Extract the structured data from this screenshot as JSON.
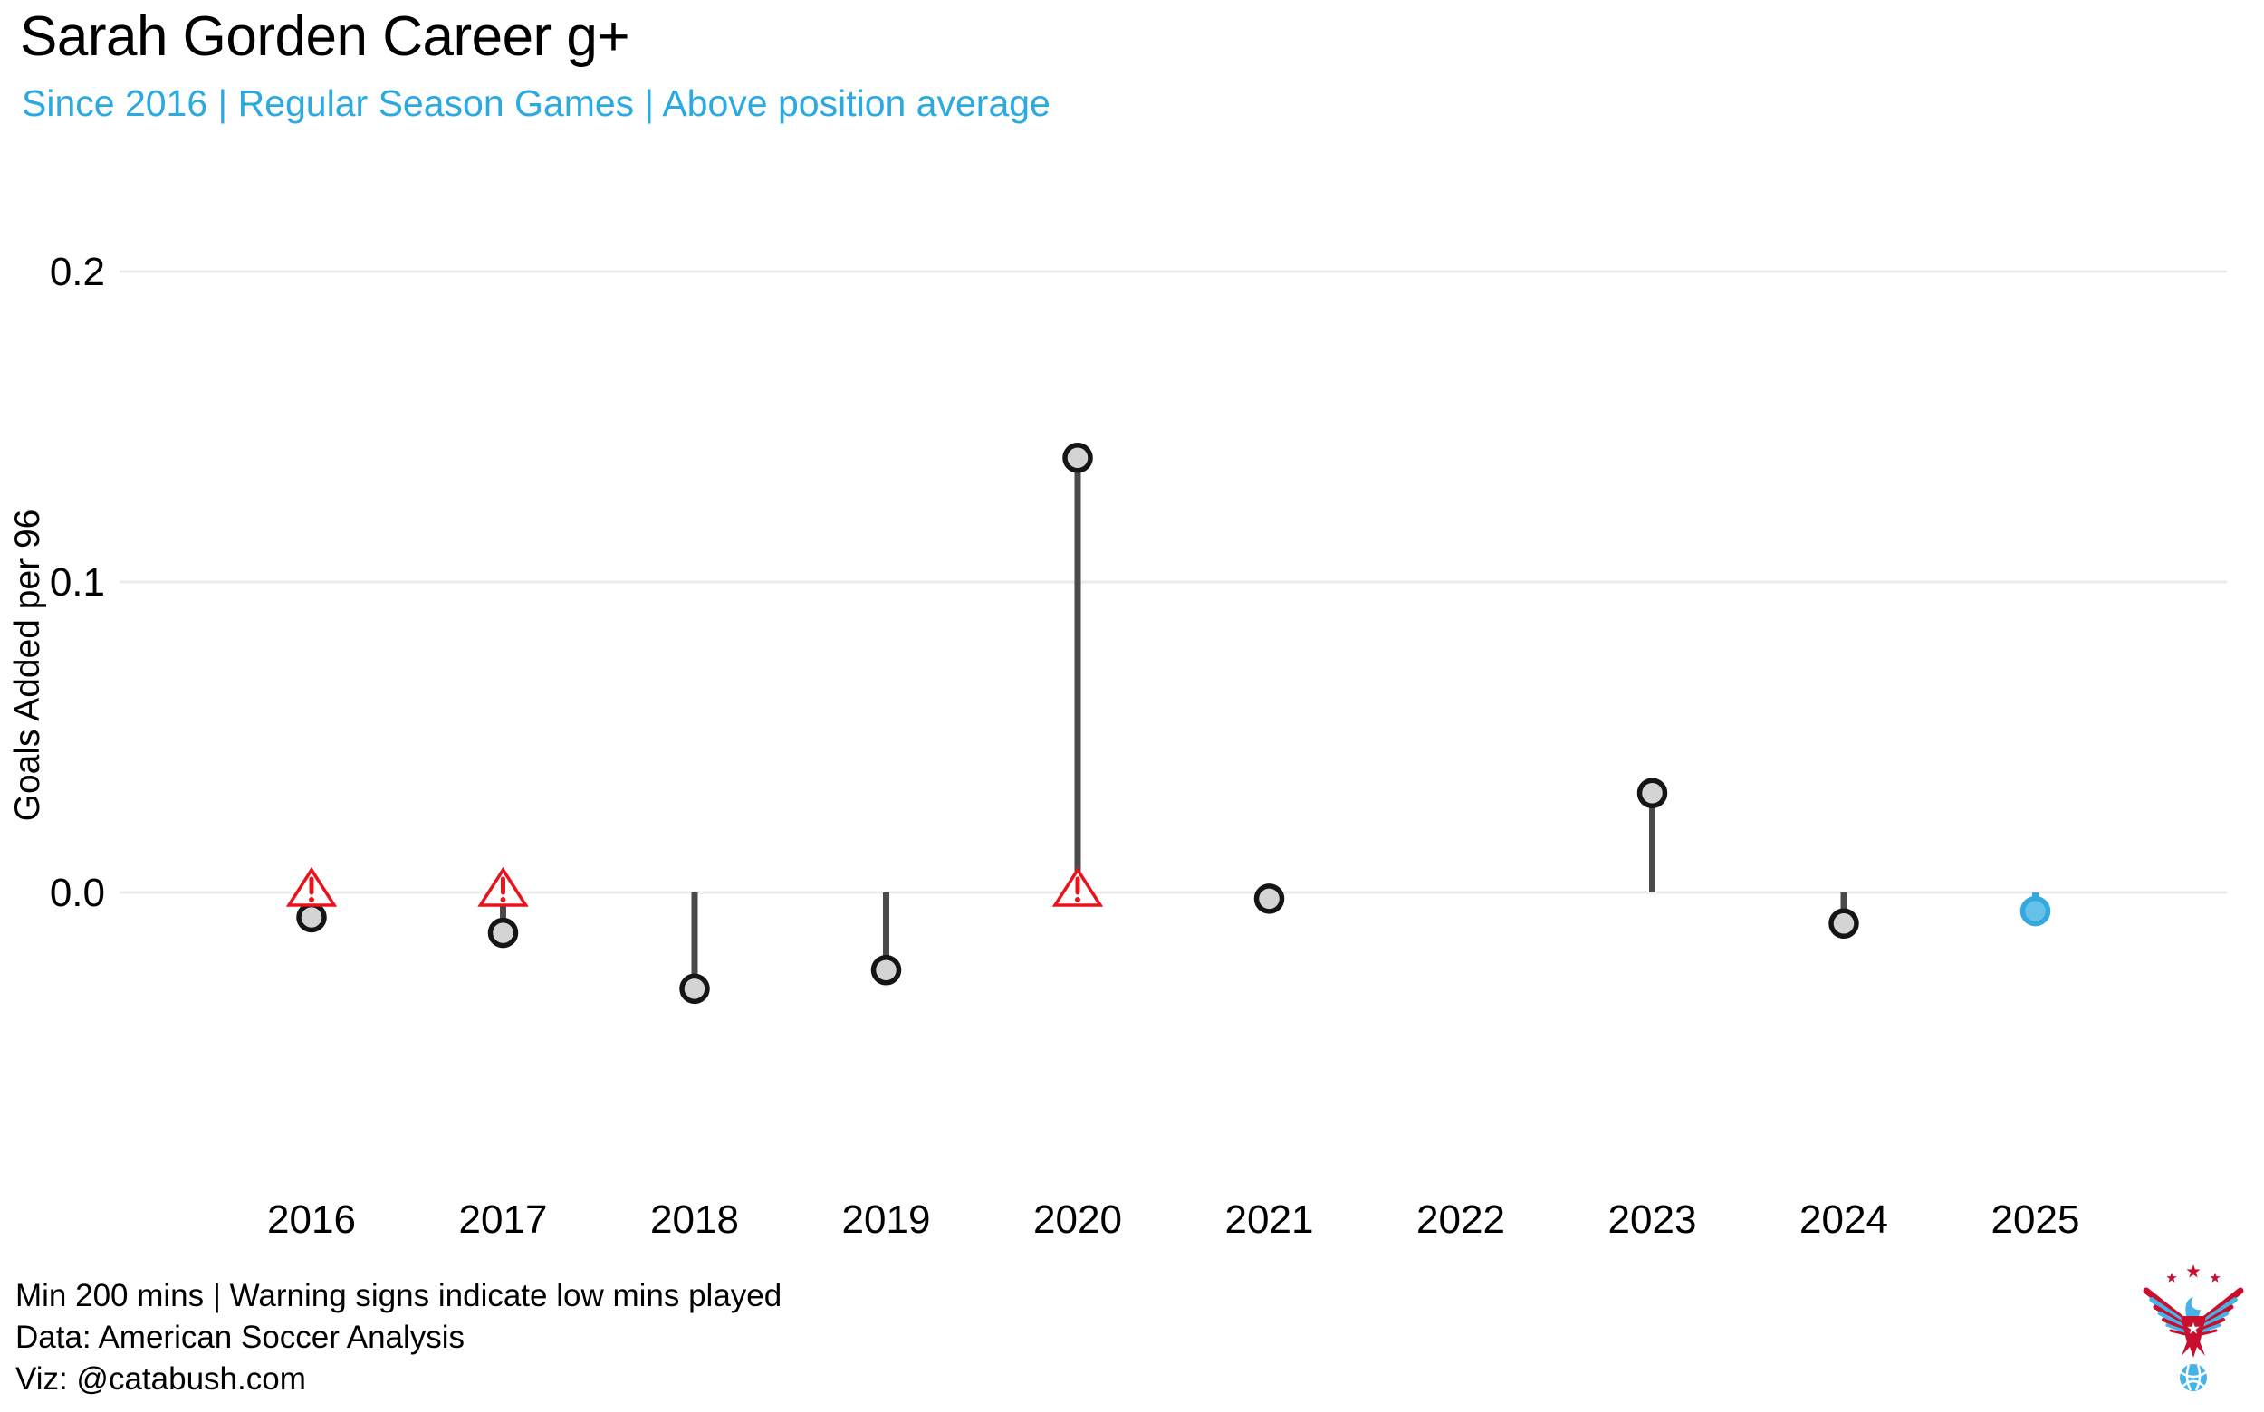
{
  "chart_data": {
    "type": "lollipop",
    "title": "Sarah Gorden Career g+",
    "subtitle": "Since 2016 | Regular Season Games | Above position average",
    "ylabel": "Goals Added per 96",
    "xlabel": "",
    "yticks": [
      0,
      0.1,
      0.2
    ],
    "ytick_labels": [
      "0.0",
      "0.1",
      "0.2"
    ],
    "ylim": [
      -0.05,
      0.22
    ],
    "grid": "horizontal-gridlines-only",
    "legend": "none",
    "baseline": 0,
    "categories": [
      "2016",
      "2017",
      "2018",
      "2019",
      "2020",
      "2021",
      "2022",
      "2023",
      "2024",
      "2025"
    ],
    "years_without_data": [
      "2022"
    ],
    "series": [
      {
        "name": "Goals Added above position average per 96",
        "points": [
          {
            "year": 2016,
            "value": -0.008,
            "low_minutes_warning": true,
            "highlight": false
          },
          {
            "year": 2017,
            "value": -0.013,
            "low_minutes_warning": true,
            "highlight": false
          },
          {
            "year": 2018,
            "value": -0.031,
            "low_minutes_warning": false,
            "highlight": false
          },
          {
            "year": 2019,
            "value": -0.025,
            "low_minutes_warning": false,
            "highlight": false
          },
          {
            "year": 2020,
            "value": 0.14,
            "low_minutes_warning": true,
            "highlight": false
          },
          {
            "year": 2021,
            "value": -0.002,
            "low_minutes_warning": false,
            "highlight": false
          },
          {
            "year": 2023,
            "value": 0.032,
            "low_minutes_warning": false,
            "highlight": false
          },
          {
            "year": 2024,
            "value": -0.01,
            "low_minutes_warning": false,
            "highlight": false
          },
          {
            "year": 2025,
            "value": -0.006,
            "low_minutes_warning": false,
            "highlight": true
          }
        ]
      }
    ]
  },
  "footnotes": [
    "Min 200 mins | Warning signs indicate low mins played",
    "Data: American Soccer Analysis",
    "Viz: @catabush.com"
  ],
  "colors": {
    "subtitle_blue": "#2BA9E1",
    "point_fill": "#D4D4D4",
    "point_stroke": "#151515",
    "stem": "#4A4A4A",
    "grid": "#EBEBEB",
    "warning_red": "#E8131D",
    "highlight_ring": "#35A9DE",
    "highlight_fill": "#67C0E8",
    "logo_red": "#C8102E",
    "logo_blue": "#45B3E6",
    "text": "#000000"
  },
  "logo": {
    "name": "american-soccer-analysis-eagle-logo"
  }
}
